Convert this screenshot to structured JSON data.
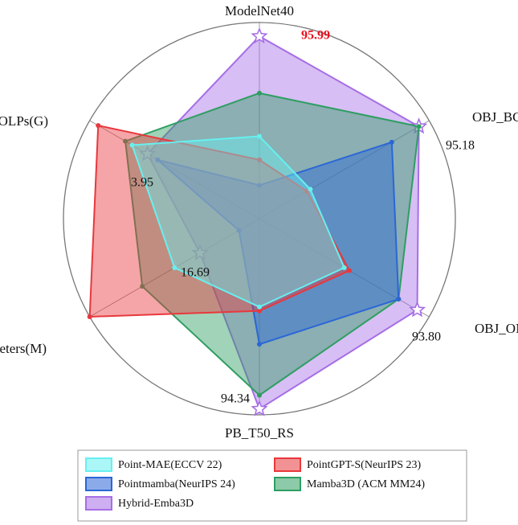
{
  "chart_data": {
    "type": "radar",
    "categories": [
      "ModelNet40",
      "OBJ_BG",
      "OBJ_ONLY",
      "PB_T50_RS",
      "Parameters(M)",
      "FOLPs(G)"
    ],
    "rlim": [
      0,
      1
    ],
    "series": [
      {
        "name": "Point-MAE(ECCV 22)",
        "color": "#66f0f0",
        "values": [
          0.42,
          0.3,
          0.5,
          0.45,
          0.5,
          0.75
        ]
      },
      {
        "name": "PointGPT-S(NeurIPS 23)",
        "color": "#e8383d",
        "values": [
          0.3,
          0.28,
          0.53,
          0.47,
          1.0,
          0.95
        ]
      },
      {
        "name": "Pointmamba(NeurIPS 24)",
        "color": "#2b66d6",
        "values": [
          0.17,
          0.78,
          0.82,
          0.64,
          0.12,
          0.6
        ]
      },
      {
        "name": "Mamba3D (ACM MM24)",
        "color": "#2e9e62",
        "values": [
          0.64,
          0.94,
          0.82,
          0.9,
          0.69,
          0.79
        ]
      },
      {
        "name": "Hybrid-Emba3D",
        "color": "#a66ee6",
        "values": [
          0.93,
          0.94,
          0.93,
          0.97,
          0.35,
          0.66
        ]
      }
    ],
    "annotations": [
      {
        "text": "95.99",
        "color": "#e8101a"
      },
      {
        "text": "95.18",
        "color": "#111111"
      },
      {
        "text": "93.80",
        "color": "#111111"
      },
      {
        "text": "94.34",
        "color": "#111111"
      },
      {
        "text": "16.69",
        "color": "#111111"
      },
      {
        "text": "3.95",
        "color": "#111111"
      }
    ]
  }
}
